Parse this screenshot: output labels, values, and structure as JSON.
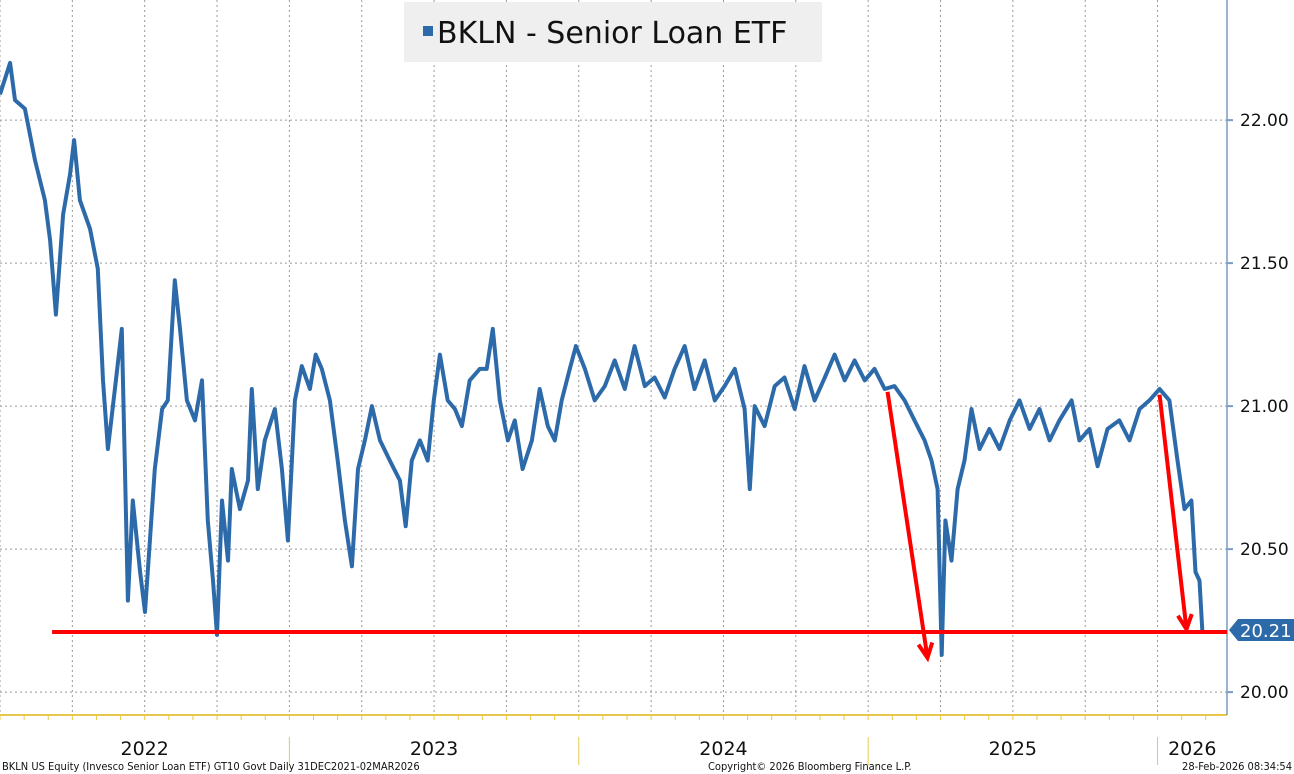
{
  "chart_data": {
    "type": "line",
    "title": "BKLN - Senior Loan ETF",
    "xlim": [
      2022.0,
      2026.24
    ],
    "ylim": [
      19.92,
      22.42
    ],
    "yticks": [
      "20.00",
      "20.50",
      "21.00",
      "21.50",
      "22.00"
    ],
    "ytick_values": [
      20.0,
      20.5,
      21.0,
      21.5,
      22.0
    ],
    "xtick_labels": [
      "2022",
      "2023",
      "2024",
      "2025",
      "2026"
    ],
    "grid": true,
    "legend": "top-center",
    "colors": {
      "series": "#2d6aa9",
      "annotation": "#ff0000",
      "label_bg": "#2d6aa9",
      "xaxis": "#e8c84a",
      "yaxis": "#7a9cc6"
    },
    "last_value": {
      "label": "20.21",
      "value": 20.21
    },
    "support_line": {
      "y": 20.21,
      "x_start": 2022.18
    },
    "arrows": [
      {
        "from": [
          2025.067,
          21.05
        ],
        "to": [
          2025.205,
          20.12
        ]
      },
      {
        "from": [
          2026.007,
          21.04
        ],
        "to": [
          2026.1,
          20.22
        ]
      }
    ],
    "series": [
      {
        "name": "BKLN - Senior Loan ETF",
        "points": [
          [
            2022.0,
            22.09
          ],
          [
            2022.035,
            22.2
          ],
          [
            2022.052,
            22.07
          ],
          [
            2022.086,
            22.04
          ],
          [
            2022.121,
            21.86
          ],
          [
            2022.155,
            21.72
          ],
          [
            2022.173,
            21.58
          ],
          [
            2022.193,
            21.32
          ],
          [
            2022.218,
            21.67
          ],
          [
            2022.242,
            21.81
          ],
          [
            2022.256,
            21.93
          ],
          [
            2022.276,
            21.72
          ],
          [
            2022.311,
            21.62
          ],
          [
            2022.338,
            21.48
          ],
          [
            2022.356,
            21.09
          ],
          [
            2022.373,
            20.85
          ],
          [
            2022.397,
            21.06
          ],
          [
            2022.421,
            21.27
          ],
          [
            2022.442,
            20.32
          ],
          [
            2022.459,
            20.67
          ],
          [
            2022.484,
            20.42
          ],
          [
            2022.501,
            20.28
          ],
          [
            2022.518,
            20.53
          ],
          [
            2022.535,
            20.78
          ],
          [
            2022.56,
            20.99
          ],
          [
            2022.58,
            21.02
          ],
          [
            2022.604,
            21.44
          ],
          [
            2022.622,
            21.27
          ],
          [
            2022.646,
            21.02
          ],
          [
            2022.674,
            20.95
          ],
          [
            2022.698,
            21.09
          ],
          [
            2022.718,
            20.6
          ],
          [
            2022.736,
            20.39
          ],
          [
            2022.75,
            20.2
          ],
          [
            2022.767,
            20.67
          ],
          [
            2022.788,
            20.46
          ],
          [
            2022.801,
            20.78
          ],
          [
            2022.829,
            20.64
          ],
          [
            2022.857,
            20.74
          ],
          [
            2022.87,
            21.06
          ],
          [
            2022.891,
            20.71
          ],
          [
            2022.915,
            20.88
          ],
          [
            2022.95,
            20.99
          ],
          [
            2022.974,
            20.78
          ],
          [
            2022.995,
            20.53
          ],
          [
            2023.019,
            21.02
          ],
          [
            2023.043,
            21.14
          ],
          [
            2023.071,
            21.06
          ],
          [
            2023.091,
            21.18
          ],
          [
            2023.112,
            21.13
          ],
          [
            2023.14,
            21.02
          ],
          [
            2023.167,
            20.81
          ],
          [
            2023.192,
            20.6
          ],
          [
            2023.216,
            20.44
          ],
          [
            2023.237,
            20.78
          ],
          [
            2023.261,
            20.88
          ],
          [
            2023.285,
            21.0
          ],
          [
            2023.313,
            20.88
          ],
          [
            2023.347,
            20.81
          ],
          [
            2023.382,
            20.74
          ],
          [
            2023.402,
            20.58
          ],
          [
            2023.423,
            20.81
          ],
          [
            2023.451,
            20.88
          ],
          [
            2023.478,
            20.81
          ],
          [
            2023.499,
            21.02
          ],
          [
            2023.52,
            21.18
          ],
          [
            2023.547,
            21.02
          ],
          [
            2023.572,
            20.99
          ],
          [
            2023.596,
            20.93
          ],
          [
            2023.623,
            21.09
          ],
          [
            2023.658,
            21.13
          ],
          [
            2023.682,
            21.13
          ],
          [
            2023.703,
            21.27
          ],
          [
            2023.727,
            21.02
          ],
          [
            2023.755,
            20.88
          ],
          [
            2023.779,
            20.95
          ],
          [
            2023.806,
            20.78
          ],
          [
            2023.838,
            20.88
          ],
          [
            2023.865,
            21.06
          ],
          [
            2023.893,
            20.93
          ],
          [
            2023.917,
            20.88
          ],
          [
            2023.941,
            21.02
          ],
          [
            2023.969,
            21.13
          ],
          [
            2023.99,
            21.21
          ],
          [
            2024.021,
            21.13
          ],
          [
            2024.055,
            21.02
          ],
          [
            2024.09,
            21.07
          ],
          [
            2024.124,
            21.16
          ],
          [
            2024.159,
            21.06
          ],
          [
            2024.193,
            21.21
          ],
          [
            2024.228,
            21.07
          ],
          [
            2024.262,
            21.1
          ],
          [
            2024.297,
            21.03
          ],
          [
            2024.331,
            21.13
          ],
          [
            2024.366,
            21.21
          ],
          [
            2024.4,
            21.06
          ],
          [
            2024.435,
            21.16
          ],
          [
            2024.47,
            21.02
          ],
          [
            2024.504,
            21.07
          ],
          [
            2024.539,
            21.13
          ],
          [
            2024.573,
            20.99
          ],
          [
            2024.591,
            20.71
          ],
          [
            2024.608,
            21.0
          ],
          [
            2024.642,
            20.93
          ],
          [
            2024.677,
            21.07
          ],
          [
            2024.711,
            21.1
          ],
          [
            2024.746,
            20.99
          ],
          [
            2024.78,
            21.14
          ],
          [
            2024.815,
            21.02
          ],
          [
            2024.85,
            21.1
          ],
          [
            2024.884,
            21.18
          ],
          [
            2024.919,
            21.09
          ],
          [
            2024.953,
            21.16
          ],
          [
            2024.988,
            21.09
          ],
          [
            2025.022,
            21.13
          ],
          [
            2025.057,
            21.06
          ],
          [
            2025.091,
            21.07
          ],
          [
            2025.126,
            21.02
          ],
          [
            2025.16,
            20.95
          ],
          [
            2025.195,
            20.88
          ],
          [
            2025.219,
            20.81
          ],
          [
            2025.24,
            20.71
          ],
          [
            2025.254,
            20.13
          ],
          [
            2025.267,
            20.6
          ],
          [
            2025.288,
            20.46
          ],
          [
            2025.309,
            20.71
          ],
          [
            2025.333,
            20.81
          ],
          [
            2025.357,
            20.99
          ],
          [
            2025.385,
            20.85
          ],
          [
            2025.419,
            20.92
          ],
          [
            2025.454,
            20.85
          ],
          [
            2025.489,
            20.95
          ],
          [
            2025.523,
            21.02
          ],
          [
            2025.558,
            20.92
          ],
          [
            2025.592,
            20.99
          ],
          [
            2025.627,
            20.88
          ],
          [
            2025.661,
            20.95
          ],
          [
            2025.703,
            21.02
          ],
          [
            2025.73,
            20.88
          ],
          [
            2025.765,
            20.92
          ],
          [
            2025.793,
            20.79
          ],
          [
            2025.827,
            20.92
          ],
          [
            2025.868,
            20.95
          ],
          [
            2025.903,
            20.88
          ],
          [
            2025.938,
            20.99
          ],
          [
            2025.972,
            21.02
          ],
          [
            2026.007,
            21.06
          ],
          [
            2026.041,
            21.02
          ],
          [
            2026.069,
            20.81
          ],
          [
            2026.093,
            20.64
          ],
          [
            2026.117,
            20.67
          ],
          [
            2026.131,
            20.42
          ],
          [
            2026.145,
            20.39
          ],
          [
            2026.155,
            20.21
          ]
        ]
      }
    ]
  },
  "footer": {
    "left": "BKLN US Equity (Invesco Senior Loan ETF) GT10  Govt Daily 31DEC2021-02MAR2026",
    "center": "Copyright© 2026 Bloomberg Finance L.P.",
    "right": "28-Feb-2026 08:34:54"
  }
}
